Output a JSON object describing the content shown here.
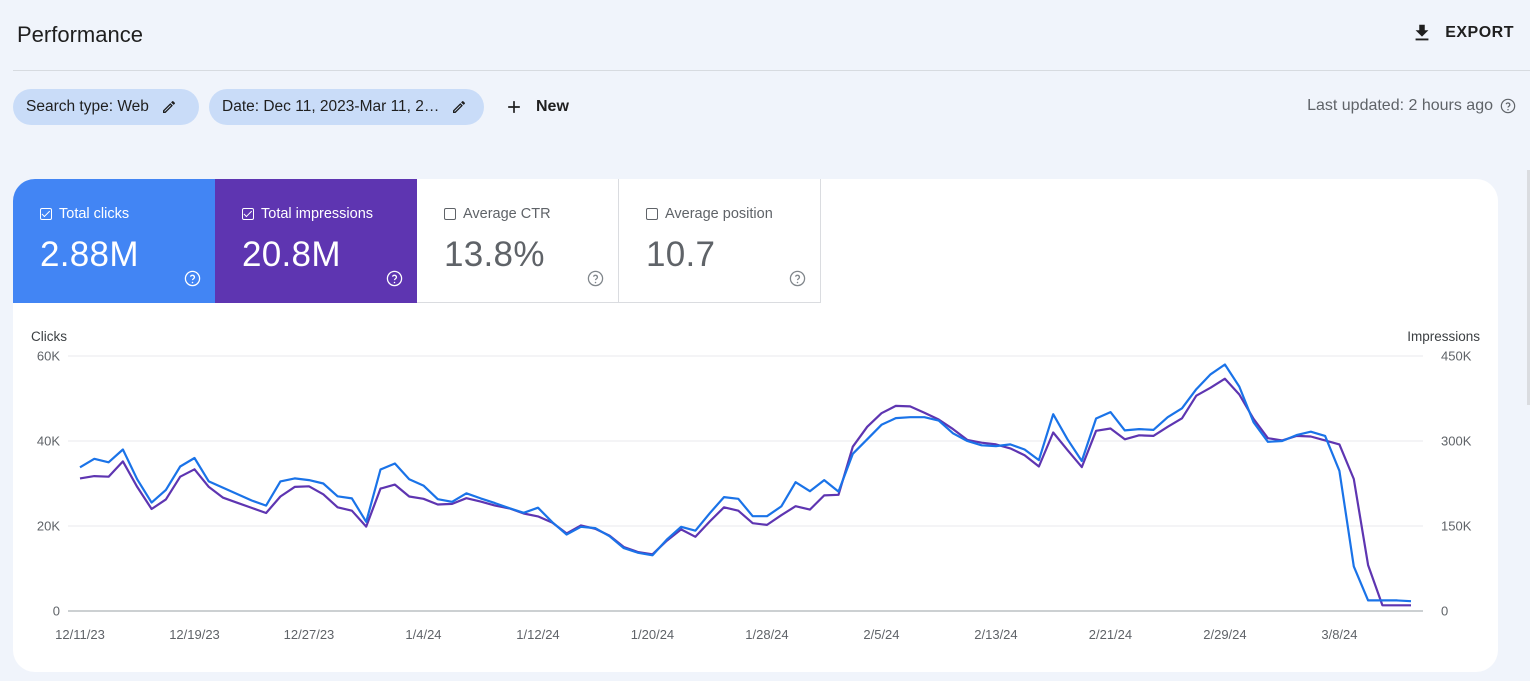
{
  "header": {
    "title": "Performance",
    "export_label": "EXPORT",
    "export_icon": "download-icon"
  },
  "filters": {
    "search_type_label": "Search type: Web",
    "date_label": "Date: Dec 11, 2023-Mar 11, 2…",
    "new_label": "New",
    "edit_icon": "pencil-icon",
    "add_icon": "plus-icon"
  },
  "status": {
    "last_updated": "Last updated: 2 hours ago",
    "help_icon": "help-icon"
  },
  "metrics": [
    {
      "label": "Total clicks",
      "value": "2.88M",
      "checked": true,
      "color": "#4285f4"
    },
    {
      "label": "Total impressions",
      "value": "20.8M",
      "checked": true,
      "color": "#5e35b1"
    },
    {
      "label": "Average CTR",
      "value": "13.8%",
      "checked": false,
      "color": "#ffffff"
    },
    {
      "label": "Average position",
      "value": "10.7",
      "checked": false,
      "color": "#ffffff"
    }
  ],
  "chart_data": {
    "type": "line",
    "ylabel_left": "Clicks",
    "ylabel_right": "Impressions",
    "left_ticks": [
      "0",
      "20K",
      "40K",
      "60K"
    ],
    "right_ticks": [
      "0",
      "150K",
      "300K",
      "450K"
    ],
    "ylim_left": [
      0,
      60000
    ],
    "ylim_right": [
      0,
      450000
    ],
    "x_ticks": [
      "12/11/23",
      "12/19/23",
      "12/27/23",
      "1/4/24",
      "1/12/24",
      "1/20/24",
      "1/28/24",
      "2/5/24",
      "2/13/24",
      "2/21/24",
      "2/29/24",
      "3/8/24"
    ],
    "x_start": "2023-12-11",
    "grid": true,
    "series": [
      {
        "name": "Clicks",
        "axis": "left",
        "color": "#1a73e8",
        "values": [
          33800,
          35800,
          35000,
          38000,
          31000,
          25500,
          28500,
          34000,
          36000,
          30500,
          29000,
          27500,
          26000,
          24800,
          30500,
          31200,
          30800,
          30000,
          27000,
          26500,
          21000,
          33300,
          34700,
          31000,
          29500,
          26300,
          25700,
          27700,
          26500,
          25400,
          24200,
          23100,
          24300,
          20900,
          18000,
          19800,
          19500,
          17600,
          14800,
          13700,
          13100,
          16800,
          19800,
          18900,
          23000,
          26800,
          26400,
          22300,
          22300,
          24600,
          30300,
          28200,
          30800,
          28100,
          37000,
          40400,
          43800,
          45400,
          45600,
          45600,
          44800,
          41800,
          40000,
          39000,
          38800,
          39200,
          38000,
          35500,
          46300,
          40400,
          35300,
          45300,
          46800,
          42500,
          42800,
          42600,
          45600,
          47700,
          52200,
          55700,
          58000,
          52800,
          44400,
          39800,
          40000,
          41400,
          42200,
          41200,
          33000,
          10500,
          2500,
          2500,
          2500,
          2300
        ]
      },
      {
        "name": "Impressions",
        "axis": "right",
        "color": "#5e35b1",
        "values": [
          234000,
          238000,
          237000,
          264000,
          219000,
          180000,
          197000,
          237000,
          250000,
          219000,
          200000,
          191000,
          182000,
          173000,
          202000,
          219000,
          220000,
          206000,
          183000,
          177000,
          149000,
          216000,
          223000,
          202000,
          198000,
          188000,
          189000,
          199000,
          193000,
          186000,
          181000,
          172000,
          167000,
          156000,
          137000,
          151000,
          145000,
          133000,
          113000,
          104000,
          100000,
          124000,
          144000,
          131000,
          158000,
          183000,
          177000,
          155000,
          152000,
          169000,
          185000,
          179000,
          204000,
          205000,
          290000,
          325000,
          349000,
          362000,
          361000,
          350000,
          338000,
          321000,
          302000,
          297000,
          294000,
          287000,
          275000,
          255000,
          315000,
          284000,
          254000,
          318000,
          322000,
          303000,
          310000,
          309000,
          325000,
          340000,
          380000,
          394000,
          410000,
          382000,
          339000,
          305000,
          301000,
          309000,
          308000,
          301000,
          294000,
          233000,
          81000,
          10000,
          10000,
          10000
        ]
      }
    ]
  }
}
